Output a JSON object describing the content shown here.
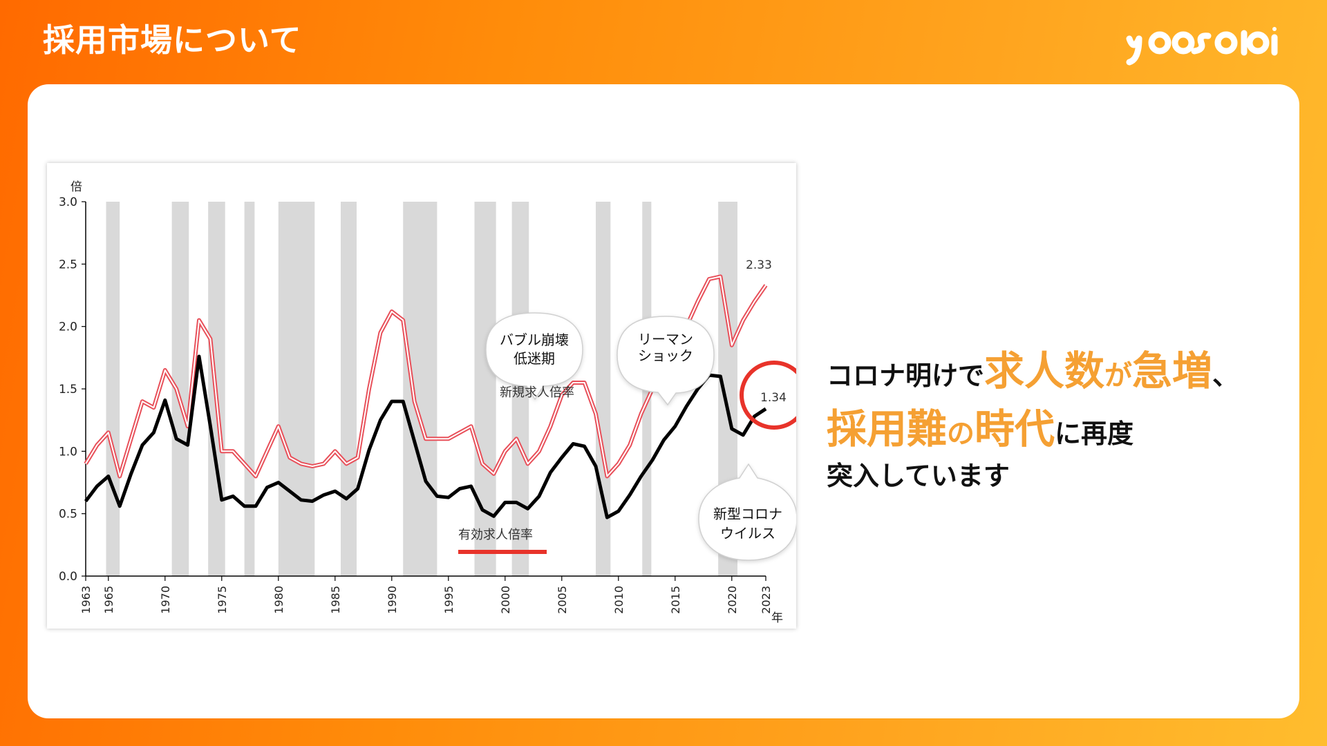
{
  "header": {
    "title": "採用市場について",
    "logo_text": "yoasobi"
  },
  "colors": {
    "accent": "#f5a033",
    "highlight_circle": "#e8332a",
    "underline": "#e8332a",
    "recession_band": "#d9d9d9",
    "series_new": "#e8505a",
    "series_effective": "#000000"
  },
  "headline": {
    "l1_a": "コロナ明けで",
    "l1_b": "求人数",
    "l1_c": "が",
    "l1_d": "急増",
    "l1_e": "、",
    "l2_a": "採用難",
    "l2_b": "の",
    "l2_c": "時代",
    "l2_d": "に再度",
    "l3": "突入しています"
  },
  "chart_data": {
    "type": "line",
    "x_unit": "年",
    "y_unit": "倍",
    "ylim": [
      0,
      3.0
    ],
    "xlim": [
      1963,
      2023
    ],
    "y_ticks": [
      "0.0",
      "0.5",
      "1.0",
      "1.5",
      "2.0",
      "2.5",
      "3.0"
    ],
    "x_ticks": [
      "1963",
      "1965",
      "1970",
      "1975",
      "1980",
      "1985",
      "1990",
      "1995",
      "2000",
      "2005",
      "2010",
      "2015",
      "2020",
      "2023"
    ],
    "grid": false,
    "recession_bands": [
      [
        1964.8,
        1966.0
      ],
      [
        1970.6,
        1972.1
      ],
      [
        1973.8,
        1975.3
      ],
      [
        1977.0,
        1977.9
      ],
      [
        1980.0,
        1983.2
      ],
      [
        1985.5,
        1986.9
      ],
      [
        1991.0,
        1994.0
      ],
      [
        1997.3,
        1999.2
      ],
      [
        2000.6,
        2002.1
      ],
      [
        2008.0,
        2009.3
      ],
      [
        2012.1,
        2012.9
      ],
      [
        2018.8,
        2020.5
      ]
    ],
    "series": [
      {
        "name": "新規求人倍率",
        "x": [
          1963,
          1964,
          1965,
          1966,
          1967,
          1968,
          1969,
          1970,
          1971,
          1972,
          1973,
          1974,
          1975,
          1976,
          1977,
          1978,
          1979,
          1980,
          1981,
          1982,
          1983,
          1984,
          1985,
          1986,
          1987,
          1988,
          1989,
          1990,
          1991,
          1992,
          1993,
          1994,
          1995,
          1996,
          1997,
          1998,
          1999,
          2000,
          2001,
          2002,
          2003,
          2004,
          2005,
          2006,
          2007,
          2008,
          2009,
          2010,
          2011,
          2012,
          2013,
          2014,
          2015,
          2016,
          2017,
          2018,
          2019,
          2020,
          2021,
          2022,
          2023
        ],
        "values": [
          0.9,
          1.05,
          1.15,
          0.8,
          1.1,
          1.4,
          1.35,
          1.65,
          1.5,
          1.2,
          2.05,
          1.9,
          1.0,
          1.0,
          0.9,
          0.8,
          1.0,
          1.2,
          0.95,
          0.9,
          0.88,
          0.9,
          1.0,
          0.9,
          0.95,
          1.5,
          1.95,
          2.12,
          2.05,
          1.4,
          1.1,
          1.1,
          1.1,
          1.15,
          1.2,
          0.9,
          0.82,
          1.0,
          1.1,
          0.9,
          1.0,
          1.2,
          1.45,
          1.55,
          1.55,
          1.3,
          0.8,
          0.9,
          1.05,
          1.3,
          1.5,
          1.7,
          1.85,
          2.0,
          2.2,
          2.38,
          2.4,
          1.85,
          2.05,
          2.2,
          2.33
        ]
      },
      {
        "name": "有効求人倍率",
        "x": [
          1963,
          1964,
          1965,
          1966,
          1967,
          1968,
          1969,
          1970,
          1971,
          1972,
          1973,
          1974,
          1975,
          1976,
          1977,
          1978,
          1979,
          1980,
          1981,
          1982,
          1983,
          1984,
          1985,
          1986,
          1987,
          1988,
          1989,
          1990,
          1991,
          1992,
          1993,
          1994,
          1995,
          1996,
          1997,
          1998,
          1999,
          2000,
          2001,
          2002,
          2003,
          2004,
          2005,
          2006,
          2007,
          2008,
          2009,
          2010,
          2011,
          2012,
          2013,
          2014,
          2015,
          2016,
          2017,
          2018,
          2019,
          2020,
          2021,
          2022,
          2023
        ],
        "values": [
          0.6,
          0.72,
          0.8,
          0.56,
          0.82,
          1.05,
          1.15,
          1.41,
          1.1,
          1.05,
          1.76,
          1.2,
          0.61,
          0.64,
          0.56,
          0.56,
          0.71,
          0.75,
          0.68,
          0.61,
          0.6,
          0.65,
          0.68,
          0.62,
          0.7,
          1.01,
          1.25,
          1.4,
          1.4,
          1.08,
          0.76,
          0.64,
          0.63,
          0.7,
          0.72,
          0.53,
          0.48,
          0.59,
          0.59,
          0.54,
          0.64,
          0.83,
          0.95,
          1.06,
          1.04,
          0.88,
          0.47,
          0.52,
          0.65,
          0.8,
          0.93,
          1.09,
          1.2,
          1.36,
          1.5,
          1.61,
          1.6,
          1.18,
          1.13,
          1.28,
          1.34
        ]
      }
    ],
    "series_labels": {
      "new": "新規求人倍率",
      "effective": "有効求人倍率"
    },
    "end_labels": {
      "new": "2.33",
      "effective": "1.34"
    },
    "callouts": [
      {
        "line1": "バブル崩壊",
        "line2": "低迷期"
      },
      {
        "line1": "リーマン",
        "line2": "ショック"
      },
      {
        "line1": "新型コロナ",
        "line2": "ウイルス"
      }
    ]
  }
}
